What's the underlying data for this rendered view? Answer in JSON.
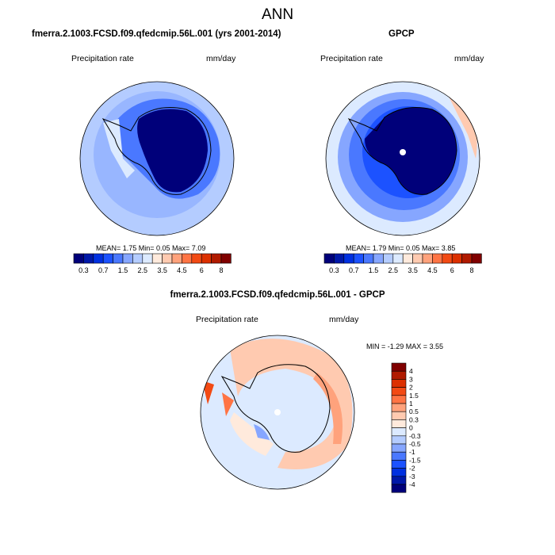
{
  "title": "ANN",
  "panels": [
    {
      "title": "fmerra.2.1003.FCSD.f09.qfedcmip.56L.001 (yrs 2001-2014)",
      "left_label": "Precipitation rate",
      "right_label": "mm/day",
      "stats": "MEAN=   1.75  Min=   0.05  Max=   7.09"
    },
    {
      "title": "GPCP",
      "left_label": "Precipitation rate",
      "right_label": "mm/day",
      "stats": "MEAN=   1.79  Min=   0.05  Max=   3.85"
    },
    {
      "title": "fmerra.2.1003.FCSD.f09.qfedcmip.56L.001 - GPCP",
      "left_label": "Precipitation rate",
      "right_label": "mm/day",
      "stats": "MIN =  -1.29 MAX =   3.55"
    }
  ],
  "colorbar_abs": {
    "labels": [
      "0.3",
      "0.7",
      "1.5",
      "2.5",
      "3.5",
      "4.5",
      "6",
      "8"
    ]
  },
  "colorbar_diff": {
    "labels": [
      "4",
      "3",
      "2",
      "1.5",
      "1",
      "0.5",
      "0.3",
      "0",
      "-0.3",
      "-0.5",
      "-1",
      "-1.5",
      "-2",
      "-3",
      "-4"
    ]
  },
  "colors": [
    "#00007a",
    "#0018a8",
    "#0030e0",
    "#1c52ff",
    "#4a78ff",
    "#86a6ff",
    "#b4ccff",
    "#dceaff",
    "#ffeadc",
    "#ffcab0",
    "#ffa27c",
    "#ff7444",
    "#f24a14",
    "#dc3000",
    "#b01a00",
    "#800000"
  ]
}
